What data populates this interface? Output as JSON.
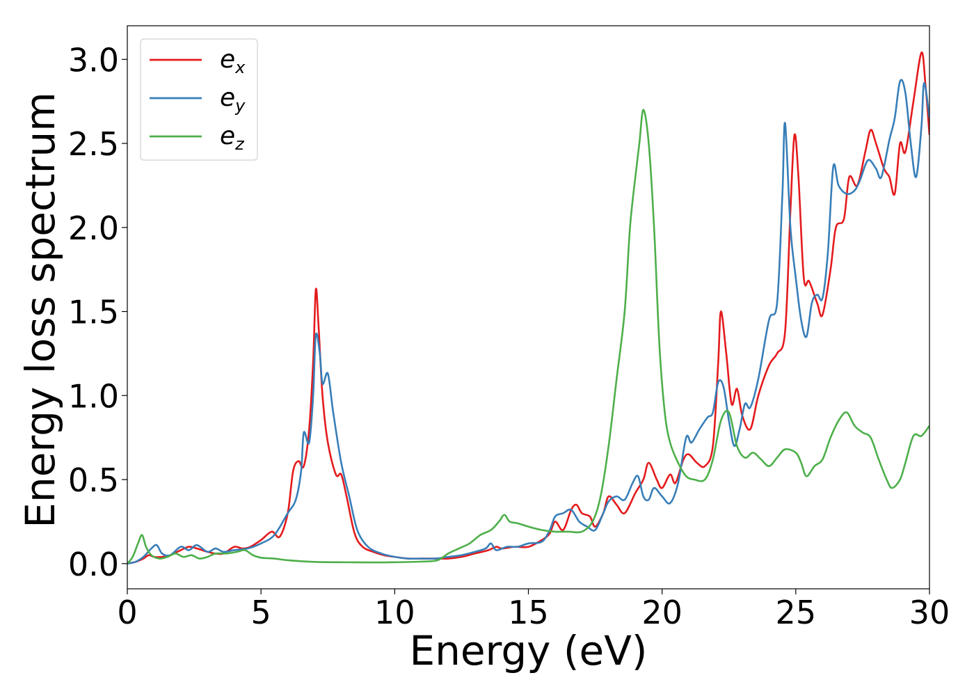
{
  "chart_data": {
    "type": "line",
    "xlabel": "Energy (eV)",
    "ylabel": "Energy loss spectrum",
    "xlim": [
      0,
      30
    ],
    "ylim": [
      -0.15,
      3.2
    ],
    "x_ticks": [
      "0",
      "5",
      "10",
      "15",
      "20",
      "25",
      "30"
    ],
    "y_ticks": [
      "0.0",
      "0.5",
      "1.0",
      "1.5",
      "2.0",
      "2.5",
      "3.0"
    ],
    "grid": false,
    "legend_position": "upper-left",
    "series": [
      {
        "name": "ex",
        "label_base": "e",
        "label_sub": "x",
        "color": "#e41a1c",
        "points": [
          [
            0,
            0
          ],
          [
            0.3,
            0.01
          ],
          [
            0.6,
            0.03
          ],
          [
            0.8,
            0.05
          ],
          [
            1.0,
            0.04
          ],
          [
            1.3,
            0.04
          ],
          [
            1.6,
            0.05
          ],
          [
            2.0,
            0.08
          ],
          [
            2.3,
            0.1
          ],
          [
            2.6,
            0.09
          ],
          [
            3.0,
            0.07
          ],
          [
            3.3,
            0.06
          ],
          [
            3.6,
            0.06
          ],
          [
            4.0,
            0.1
          ],
          [
            4.3,
            0.09
          ],
          [
            4.6,
            0.1
          ],
          [
            5.0,
            0.14
          ],
          [
            5.4,
            0.19
          ],
          [
            5.7,
            0.16
          ],
          [
            6.0,
            0.3
          ],
          [
            6.2,
            0.55
          ],
          [
            6.4,
            0.61
          ],
          [
            6.6,
            0.58
          ],
          [
            6.8,
            0.8
          ],
          [
            6.95,
            1.2
          ],
          [
            7.05,
            1.63
          ],
          [
            7.15,
            1.42
          ],
          [
            7.3,
            1.0
          ],
          [
            7.5,
            0.72
          ],
          [
            7.8,
            0.53
          ],
          [
            8.0,
            0.53
          ],
          [
            8.2,
            0.4
          ],
          [
            8.5,
            0.18
          ],
          [
            8.8,
            0.1
          ],
          [
            9.2,
            0.07
          ],
          [
            9.6,
            0.05
          ],
          [
            10.0,
            0.04
          ],
          [
            10.5,
            0.03
          ],
          [
            11.0,
            0.03
          ],
          [
            11.5,
            0.03
          ],
          [
            12.0,
            0.03
          ],
          [
            12.5,
            0.04
          ],
          [
            13.0,
            0.06
          ],
          [
            13.5,
            0.08
          ],
          [
            13.8,
            0.1
          ],
          [
            14.0,
            0.09
          ],
          [
            14.5,
            0.1
          ],
          [
            15.0,
            0.1
          ],
          [
            15.5,
            0.14
          ],
          [
            15.8,
            0.18
          ],
          [
            16.0,
            0.25
          ],
          [
            16.3,
            0.2
          ],
          [
            16.6,
            0.32
          ],
          [
            16.8,
            0.35
          ],
          [
            17.0,
            0.3
          ],
          [
            17.3,
            0.28
          ],
          [
            17.5,
            0.22
          ],
          [
            17.8,
            0.3
          ],
          [
            18.0,
            0.4
          ],
          [
            18.3,
            0.35
          ],
          [
            18.6,
            0.3
          ],
          [
            19.0,
            0.42
          ],
          [
            19.3,
            0.5
          ],
          [
            19.5,
            0.6
          ],
          [
            19.8,
            0.5
          ],
          [
            20.0,
            0.45
          ],
          [
            20.3,
            0.53
          ],
          [
            20.5,
            0.48
          ],
          [
            20.8,
            0.62
          ],
          [
            21.0,
            0.65
          ],
          [
            21.3,
            0.6
          ],
          [
            21.6,
            0.58
          ],
          [
            21.9,
            0.7
          ],
          [
            22.1,
            1.2
          ],
          [
            22.2,
            1.5
          ],
          [
            22.4,
            1.25
          ],
          [
            22.6,
            0.95
          ],
          [
            22.8,
            1.04
          ],
          [
            23.0,
            0.88
          ],
          [
            23.3,
            0.8
          ],
          [
            23.6,
            1.0
          ],
          [
            24.0,
            1.18
          ],
          [
            24.3,
            1.25
          ],
          [
            24.6,
            1.38
          ],
          [
            24.8,
            2.1
          ],
          [
            24.95,
            2.55
          ],
          [
            25.1,
            2.3
          ],
          [
            25.3,
            1.7
          ],
          [
            25.5,
            1.68
          ],
          [
            25.8,
            1.55
          ],
          [
            26.0,
            1.48
          ],
          [
            26.3,
            1.75
          ],
          [
            26.5,
            2.0
          ],
          [
            26.8,
            2.05
          ],
          [
            27.0,
            2.3
          ],
          [
            27.3,
            2.25
          ],
          [
            27.6,
            2.45
          ],
          [
            27.8,
            2.58
          ],
          [
            28.0,
            2.5
          ],
          [
            28.3,
            2.35
          ],
          [
            28.5,
            2.3
          ],
          [
            28.7,
            2.2
          ],
          [
            28.9,
            2.5
          ],
          [
            29.1,
            2.45
          ],
          [
            29.4,
            2.75
          ],
          [
            29.7,
            3.04
          ],
          [
            29.85,
            2.85
          ],
          [
            30.0,
            2.55
          ]
        ]
      },
      {
        "name": "ey",
        "label_base": "e",
        "label_sub": "y",
        "color": "#377eb8",
        "points": [
          [
            0,
            0
          ],
          [
            0.3,
            0.01
          ],
          [
            0.6,
            0.04
          ],
          [
            0.9,
            0.09
          ],
          [
            1.1,
            0.11
          ],
          [
            1.3,
            0.06
          ],
          [
            1.6,
            0.05
          ],
          [
            2.0,
            0.1
          ],
          [
            2.3,
            0.08
          ],
          [
            2.6,
            0.11
          ],
          [
            3.0,
            0.07
          ],
          [
            3.3,
            0.09
          ],
          [
            3.6,
            0.07
          ],
          [
            4.0,
            0.08
          ],
          [
            4.5,
            0.09
          ],
          [
            5.0,
            0.12
          ],
          [
            5.5,
            0.17
          ],
          [
            6.0,
            0.3
          ],
          [
            6.3,
            0.38
          ],
          [
            6.5,
            0.55
          ],
          [
            6.6,
            0.78
          ],
          [
            6.8,
            0.72
          ],
          [
            6.95,
            1.0
          ],
          [
            7.05,
            1.36
          ],
          [
            7.2,
            1.25
          ],
          [
            7.3,
            1.07
          ],
          [
            7.5,
            1.13
          ],
          [
            7.7,
            0.9
          ],
          [
            8.0,
            0.6
          ],
          [
            8.3,
            0.4
          ],
          [
            8.6,
            0.2
          ],
          [
            9.0,
            0.1
          ],
          [
            9.5,
            0.06
          ],
          [
            10.0,
            0.04
          ],
          [
            10.5,
            0.03
          ],
          [
            11.0,
            0.03
          ],
          [
            11.5,
            0.03
          ],
          [
            12.0,
            0.04
          ],
          [
            12.5,
            0.05
          ],
          [
            13.0,
            0.07
          ],
          [
            13.4,
            0.09
          ],
          [
            13.6,
            0.12
          ],
          [
            13.8,
            0.08
          ],
          [
            14.2,
            0.1
          ],
          [
            14.6,
            0.1
          ],
          [
            15.0,
            0.12
          ],
          [
            15.5,
            0.13
          ],
          [
            15.8,
            0.2
          ],
          [
            16.0,
            0.28
          ],
          [
            16.3,
            0.3
          ],
          [
            16.6,
            0.32
          ],
          [
            16.9,
            0.25
          ],
          [
            17.2,
            0.22
          ],
          [
            17.5,
            0.2
          ],
          [
            17.8,
            0.3
          ],
          [
            18.0,
            0.37
          ],
          [
            18.3,
            0.4
          ],
          [
            18.6,
            0.38
          ],
          [
            18.9,
            0.48
          ],
          [
            19.1,
            0.52
          ],
          [
            19.3,
            0.4
          ],
          [
            19.5,
            0.38
          ],
          [
            19.7,
            0.45
          ],
          [
            20.0,
            0.4
          ],
          [
            20.3,
            0.36
          ],
          [
            20.6,
            0.48
          ],
          [
            20.9,
            0.75
          ],
          [
            21.1,
            0.72
          ],
          [
            21.4,
            0.8
          ],
          [
            21.7,
            0.87
          ],
          [
            21.9,
            0.9
          ],
          [
            22.1,
            1.08
          ],
          [
            22.3,
            1.05
          ],
          [
            22.5,
            0.85
          ],
          [
            22.7,
            0.7
          ],
          [
            22.9,
            0.8
          ],
          [
            23.1,
            0.95
          ],
          [
            23.3,
            0.93
          ],
          [
            23.6,
            1.1
          ],
          [
            24.0,
            1.45
          ],
          [
            24.3,
            1.55
          ],
          [
            24.5,
            2.2
          ],
          [
            24.6,
            2.62
          ],
          [
            24.8,
            2.0
          ],
          [
            25.0,
            1.7
          ],
          [
            25.2,
            1.45
          ],
          [
            25.4,
            1.35
          ],
          [
            25.6,
            1.55
          ],
          [
            25.8,
            1.6
          ],
          [
            26.0,
            1.58
          ],
          [
            26.2,
            1.85
          ],
          [
            26.4,
            2.36
          ],
          [
            26.6,
            2.25
          ],
          [
            26.9,
            2.2
          ],
          [
            27.2,
            2.22
          ],
          [
            27.4,
            2.28
          ],
          [
            27.7,
            2.4
          ],
          [
            28.0,
            2.35
          ],
          [
            28.2,
            2.3
          ],
          [
            28.5,
            2.52
          ],
          [
            28.7,
            2.65
          ],
          [
            28.9,
            2.87
          ],
          [
            29.1,
            2.8
          ],
          [
            29.3,
            2.5
          ],
          [
            29.5,
            2.3
          ],
          [
            29.7,
            2.6
          ],
          [
            29.8,
            2.86
          ],
          [
            30.0,
            2.65
          ]
        ]
      },
      {
        "name": "ez",
        "label_base": "e",
        "label_sub": "z",
        "color": "#4daf4a",
        "points": [
          [
            0,
            0
          ],
          [
            0.2,
            0.04
          ],
          [
            0.4,
            0.12
          ],
          [
            0.55,
            0.17
          ],
          [
            0.7,
            0.1
          ],
          [
            0.9,
            0.05
          ],
          [
            1.2,
            0.03
          ],
          [
            1.5,
            0.04
          ],
          [
            1.8,
            0.06
          ],
          [
            2.1,
            0.04
          ],
          [
            2.4,
            0.05
          ],
          [
            2.7,
            0.03
          ],
          [
            3.0,
            0.04
          ],
          [
            3.3,
            0.06
          ],
          [
            3.7,
            0.06
          ],
          [
            4.1,
            0.07
          ],
          [
            4.4,
            0.08
          ],
          [
            4.7,
            0.05
          ],
          [
            5.0,
            0.035
          ],
          [
            5.5,
            0.03
          ],
          [
            6.0,
            0.02
          ],
          [
            7.0,
            0.01
          ],
          [
            8.0,
            0.008
          ],
          [
            9.0,
            0.007
          ],
          [
            10.0,
            0.008
          ],
          [
            11.0,
            0.012
          ],
          [
            11.6,
            0.02
          ],
          [
            12.0,
            0.06
          ],
          [
            12.4,
            0.09
          ],
          [
            12.8,
            0.12
          ],
          [
            13.2,
            0.17
          ],
          [
            13.6,
            0.2
          ],
          [
            13.9,
            0.25
          ],
          [
            14.1,
            0.29
          ],
          [
            14.3,
            0.25
          ],
          [
            14.6,
            0.24
          ],
          [
            15.0,
            0.22
          ],
          [
            15.5,
            0.2
          ],
          [
            16.0,
            0.19
          ],
          [
            16.5,
            0.19
          ],
          [
            17.0,
            0.19
          ],
          [
            17.4,
            0.25
          ],
          [
            17.7,
            0.4
          ],
          [
            18.0,
            0.7
          ],
          [
            18.3,
            1.1
          ],
          [
            18.6,
            1.5
          ],
          [
            18.8,
            2.0
          ],
          [
            19.0,
            2.3
          ],
          [
            19.15,
            2.5
          ],
          [
            19.3,
            2.7
          ],
          [
            19.5,
            2.5
          ],
          [
            19.7,
            2.0
          ],
          [
            19.9,
            1.3
          ],
          [
            20.1,
            0.9
          ],
          [
            20.3,
            0.72
          ],
          [
            20.6,
            0.6
          ],
          [
            20.9,
            0.52
          ],
          [
            21.2,
            0.5
          ],
          [
            21.6,
            0.5
          ],
          [
            21.9,
            0.62
          ],
          [
            22.2,
            0.85
          ],
          [
            22.5,
            0.9
          ],
          [
            22.8,
            0.7
          ],
          [
            23.1,
            0.63
          ],
          [
            23.4,
            0.66
          ],
          [
            23.7,
            0.62
          ],
          [
            24.0,
            0.58
          ],
          [
            24.3,
            0.63
          ],
          [
            24.6,
            0.68
          ],
          [
            25.0,
            0.66
          ],
          [
            25.2,
            0.6
          ],
          [
            25.4,
            0.52
          ],
          [
            25.7,
            0.58
          ],
          [
            26.0,
            0.62
          ],
          [
            26.3,
            0.75
          ],
          [
            26.6,
            0.85
          ],
          [
            26.9,
            0.9
          ],
          [
            27.2,
            0.82
          ],
          [
            27.5,
            0.78
          ],
          [
            27.8,
            0.75
          ],
          [
            28.1,
            0.62
          ],
          [
            28.4,
            0.5
          ],
          [
            28.6,
            0.45
          ],
          [
            28.9,
            0.5
          ],
          [
            29.1,
            0.6
          ],
          [
            29.4,
            0.76
          ],
          [
            29.7,
            0.76
          ],
          [
            30.0,
            0.82
          ]
        ]
      }
    ]
  }
}
